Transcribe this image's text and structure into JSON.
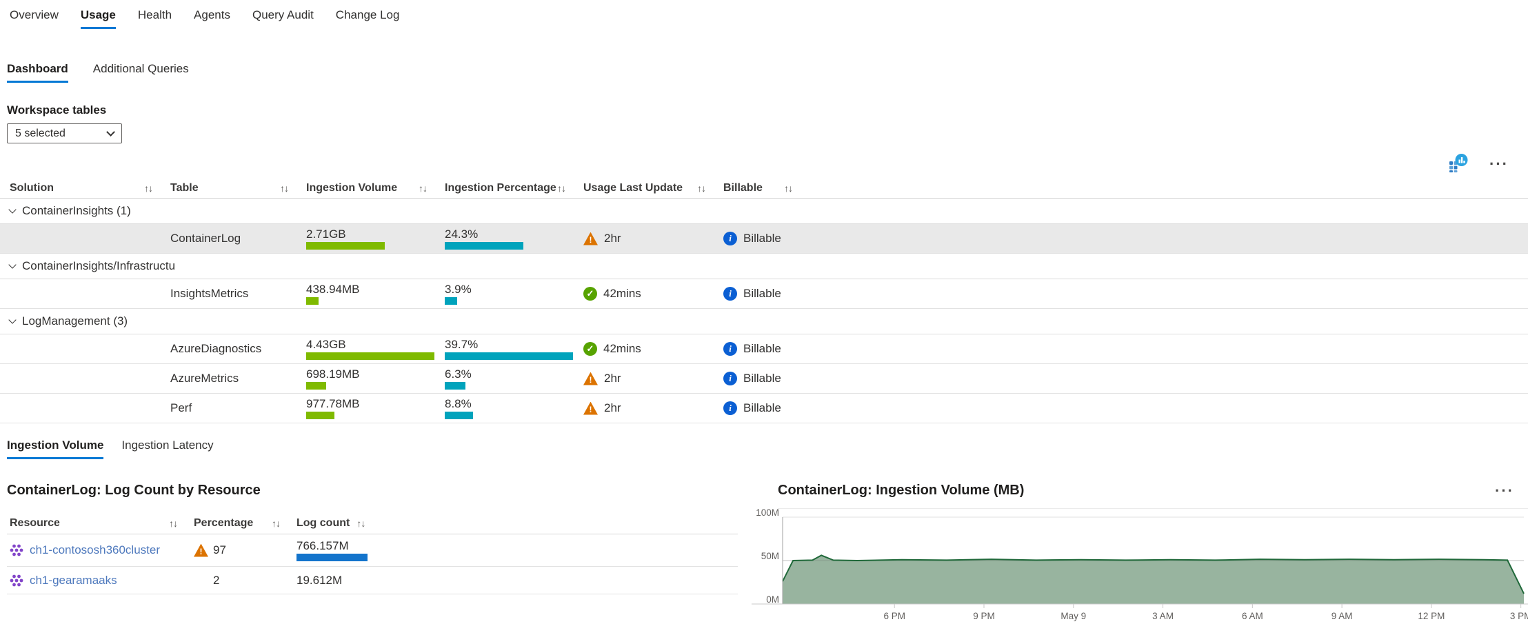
{
  "icons": {
    "ellipsis": "···",
    "sort": "↑↓",
    "warning_glyph": "!",
    "success_glyph": "✓",
    "info_glyph": "i"
  },
  "nav": {
    "tabs": [
      {
        "label": "Overview",
        "active": false
      },
      {
        "label": "Usage",
        "active": true
      },
      {
        "label": "Health",
        "active": false
      },
      {
        "label": "Agents",
        "active": false
      },
      {
        "label": "Query Audit",
        "active": false
      },
      {
        "label": "Change Log",
        "active": false
      }
    ]
  },
  "subtabs": [
    {
      "label": "Dashboard",
      "active": true
    },
    {
      "label": "Additional Queries",
      "active": false
    }
  ],
  "filters": {
    "workspace_tables_label": "Workspace tables",
    "workspace_tables_value": "5 selected"
  },
  "usage_table": {
    "columns": [
      "Solution",
      "Table",
      "Ingestion Volume",
      "Ingestion Percentage",
      "Usage Last Update",
      "Billable"
    ],
    "groups": [
      {
        "label": "ContainerInsights (1)",
        "rows": [
          {
            "table": "ContainerLog",
            "volume": "2.71GB",
            "volume_gb": 2.71,
            "pct": "24.3%",
            "pct_val": 24.3,
            "usage": "2hr",
            "usage_status": "warning",
            "billable": "Billable",
            "selected": true
          }
        ]
      },
      {
        "label": "ContainerInsights/Infrastructu",
        "rows": [
          {
            "table": "InsightsMetrics",
            "volume": "438.94MB",
            "volume_gb": 0.43894,
            "pct": "3.9%",
            "pct_val": 3.9,
            "usage": "42mins",
            "usage_status": "success",
            "billable": "Billable",
            "selected": false
          }
        ]
      },
      {
        "label": "LogManagement (3)",
        "rows": [
          {
            "table": "AzureDiagnostics",
            "volume": "4.43GB",
            "volume_gb": 4.43,
            "pct": "39.7%",
            "pct_val": 39.7,
            "usage": "42mins",
            "usage_status": "success",
            "billable": "Billable",
            "selected": false
          },
          {
            "table": "AzureMetrics",
            "volume": "698.19MB",
            "volume_gb": 0.69819,
            "pct": "6.3%",
            "pct_val": 6.3,
            "usage": "2hr",
            "usage_status": "warning",
            "billable": "Billable",
            "selected": false
          },
          {
            "table": "Perf",
            "volume": "977.78MB",
            "volume_gb": 0.97778,
            "pct": "8.8%",
            "pct_val": 8.8,
            "usage": "2hr",
            "usage_status": "warning",
            "billable": "Billable",
            "selected": false
          }
        ]
      }
    ]
  },
  "bottom_tabs": [
    {
      "label": "Ingestion Volume",
      "active": true
    },
    {
      "label": "Ingestion Latency",
      "active": false
    }
  ],
  "resource_table": {
    "title": "ContainerLog: Log Count by Resource",
    "columns": [
      "Resource",
      "Percentage",
      "Log count"
    ],
    "rows": [
      {
        "resource": "ch1-contososh360cluster",
        "percentage": "97",
        "warning": true,
        "log_count": "766.157M",
        "log_count_val": 766.157
      },
      {
        "resource": "ch1-gearamaaks",
        "percentage": "2",
        "warning": false,
        "log_count": "19.612M",
        "log_count_val": 19.612
      }
    ]
  },
  "chart_data": {
    "type": "area",
    "title": "ContainerLog: Ingestion Volume (MB)",
    "xlabel": "",
    "ylabel": "",
    "ylim": [
      0,
      100
    ],
    "grid": true,
    "legend": "none",
    "fill_color": "#8fae97",
    "stroke_color": "#20693a",
    "yticks": [
      {
        "v": 0,
        "label": "0M"
      },
      {
        "v": 50,
        "label": "50M"
      },
      {
        "v": 100,
        "label": "100M"
      }
    ],
    "x_range_hours": [
      0,
      24.85
    ],
    "xticks": [
      {
        "h": 3.75,
        "label": "6 PM"
      },
      {
        "h": 6.75,
        "label": "9 PM"
      },
      {
        "h": 9.75,
        "label": "May 9"
      },
      {
        "h": 12.75,
        "label": "3 AM"
      },
      {
        "h": 15.75,
        "label": "6 AM"
      },
      {
        "h": 18.75,
        "label": "9 AM"
      },
      {
        "h": 21.75,
        "label": "12 PM"
      },
      {
        "h": 24.75,
        "label": "3 PM"
      }
    ],
    "points": [
      [
        0,
        26
      ],
      [
        0.35,
        50
      ],
      [
        1.0,
        50.5
      ],
      [
        1.3,
        56
      ],
      [
        1.7,
        50.5
      ],
      [
        2.5,
        50
      ],
      [
        4,
        51
      ],
      [
        5.5,
        50.5
      ],
      [
        7,
        51.5
      ],
      [
        8.5,
        50.5
      ],
      [
        10,
        51
      ],
      [
        11.5,
        50.5
      ],
      [
        13,
        51
      ],
      [
        14.5,
        50.5
      ],
      [
        16,
        51.5
      ],
      [
        17.5,
        51
      ],
      [
        19,
        51.5
      ],
      [
        20.5,
        51
      ],
      [
        22,
        51.5
      ],
      [
        23.5,
        51
      ],
      [
        24.3,
        50.5
      ],
      [
        24.85,
        12
      ]
    ]
  }
}
